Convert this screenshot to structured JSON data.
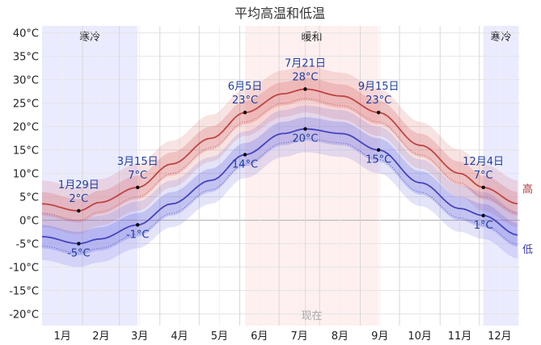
{
  "chart_data": {
    "type": "line",
    "title": "平均高温和低温",
    "y_ticks": [
      40,
      35,
      30,
      25,
      20,
      15,
      10,
      5,
      0,
      -5,
      -10,
      -15,
      -20
    ],
    "y_unit": "°C",
    "ylim": [
      -22.5,
      41.5
    ],
    "months": [
      "1月",
      "2月",
      "3月",
      "4月",
      "5月",
      "6月",
      "7月",
      "8月",
      "9月",
      "10月",
      "11月",
      "12月"
    ],
    "seasons": [
      {
        "label": "寒冷",
        "start_day": 1,
        "end_day": 74,
        "color": "#ebebff"
      },
      {
        "label": "暖和",
        "start_day": 156,
        "end_day": 258,
        "color": "#fff0f0"
      },
      {
        "label": "寒冷",
        "start_day": 338,
        "end_day": 365,
        "color": "#ebebff"
      }
    ],
    "now_label": "现在",
    "now_day": 202,
    "series": [
      {
        "name": "高",
        "color": "#c04444",
        "days": [
          1,
          29,
          45,
          74,
          100,
          130,
          156,
          185,
          202,
          230,
          258,
          290,
          320,
          338,
          365
        ],
        "values": [
          3.5,
          2,
          3.8,
          7,
          12,
          17.5,
          23,
          27,
          28,
          26.5,
          23,
          16,
          10,
          7,
          3.5
        ],
        "p25_p75_offset": 2.5,
        "p10_p90_offset": 5
      },
      {
        "name": "低",
        "color": "#4444c0",
        "days": [
          1,
          29,
          45,
          74,
          100,
          130,
          156,
          185,
          202,
          230,
          258,
          290,
          320,
          338,
          365
        ],
        "values": [
          -3.5,
          -5,
          -4,
          -1,
          3.5,
          8.5,
          14,
          18.5,
          19.5,
          18.5,
          15,
          8,
          2.5,
          1,
          -3.2
        ],
        "p25_p75_offset": 2.5,
        "p10_p90_offset": 5
      }
    ],
    "annotations": [
      {
        "day": 29,
        "value": 2,
        "date": "1月29日",
        "temp": "2°C",
        "pos": "above"
      },
      {
        "day": 29,
        "value": -5,
        "date": "",
        "temp": "-5°C",
        "pos": "below"
      },
      {
        "day": 74,
        "value": 7,
        "date": "3月15日",
        "temp": "7°C",
        "pos": "above"
      },
      {
        "day": 74,
        "value": -1,
        "date": "",
        "temp": "-1°C",
        "pos": "below"
      },
      {
        "day": 156,
        "value": 23,
        "date": "6月5日",
        "temp": "23°C",
        "pos": "above"
      },
      {
        "day": 156,
        "value": 14,
        "date": "",
        "temp": "14°C",
        "pos": "below"
      },
      {
        "day": 202,
        "value": 28,
        "date": "7月21日",
        "temp": "28°C",
        "pos": "above"
      },
      {
        "day": 202,
        "value": 19.5,
        "date": "",
        "temp": "20°C",
        "pos": "below"
      },
      {
        "day": 258,
        "value": 23,
        "date": "9月15日",
        "temp": "23°C",
        "pos": "above"
      },
      {
        "day": 258,
        "value": 15,
        "date": "",
        "temp": "15°C",
        "pos": "below"
      },
      {
        "day": 338,
        "value": 7,
        "date": "12月4日",
        "temp": "7°C",
        "pos": "above"
      },
      {
        "day": 338,
        "value": 1,
        "date": "",
        "temp": "1°C",
        "pos": "below"
      }
    ],
    "grid": true
  }
}
